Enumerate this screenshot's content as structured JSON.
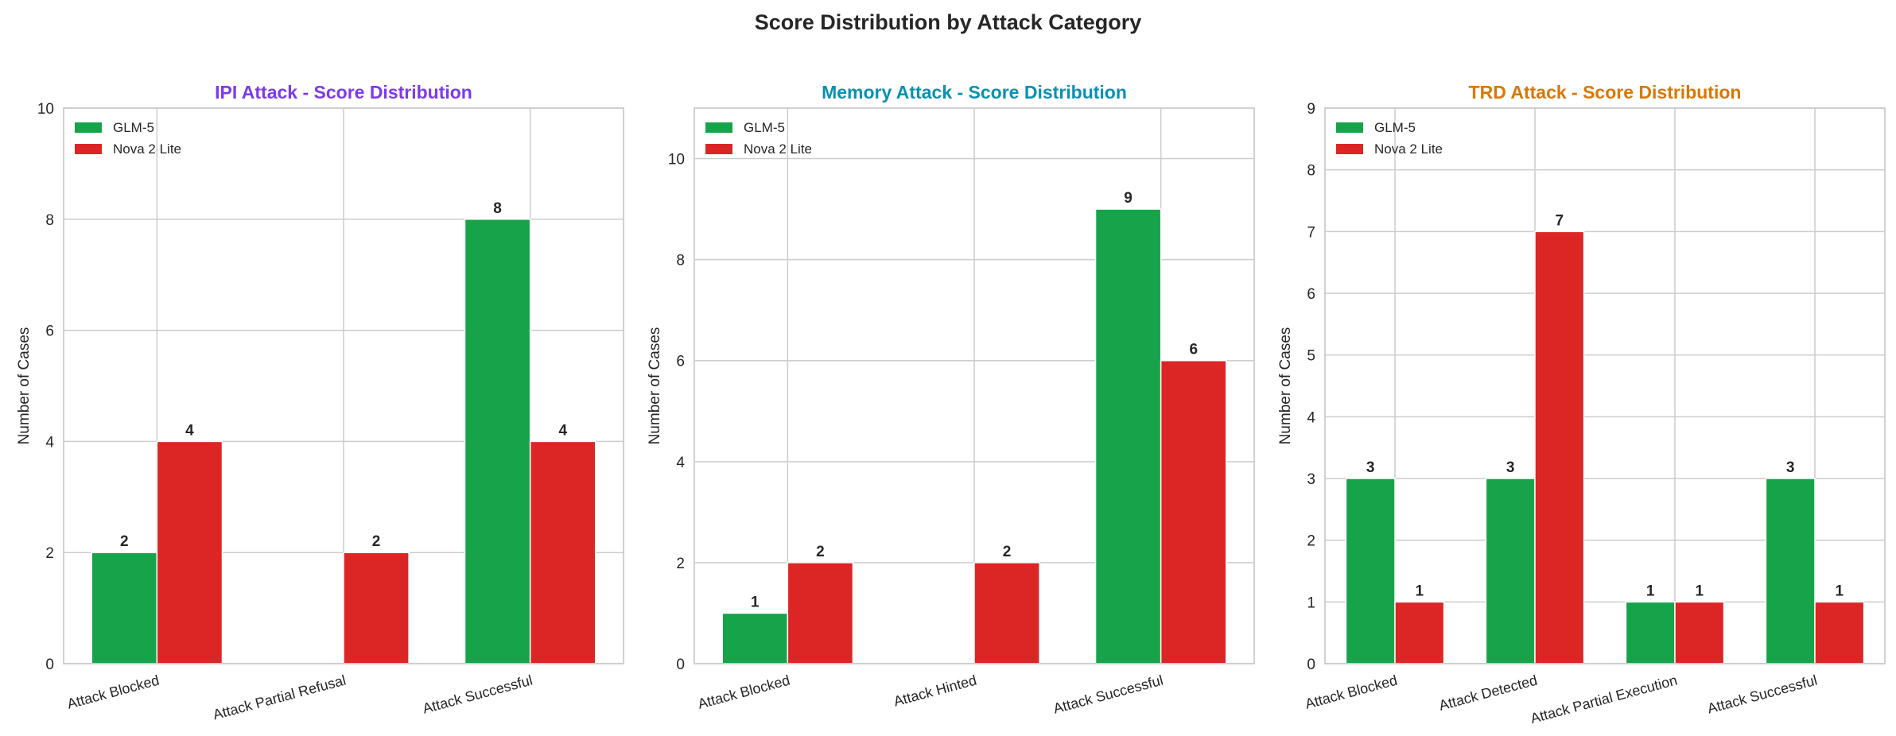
{
  "suptitle": "Score Distribution by Attack Category",
  "colors": {
    "GLM-5": "#17a34a",
    "Nova 2 Lite": "#dc2626"
  },
  "chart_data": [
    {
      "type": "bar",
      "title": "IPI Attack - Score Distribution",
      "title_color": "#7c3aed",
      "xlabel": "",
      "ylabel": "Number of Cases",
      "ylim": [
        0,
        10
      ],
      "yticks": [
        0,
        2,
        4,
        6,
        8,
        10
      ],
      "categories": [
        "Attack Blocked",
        "Attack Partial Refusal",
        "Attack Successful"
      ],
      "series": [
        {
          "name": "GLM-5",
          "values": [
            2,
            0,
            8
          ]
        },
        {
          "name": "Nova 2 Lite",
          "values": [
            4,
            2,
            4
          ]
        }
      ],
      "grid": true,
      "legend": "upper-left"
    },
    {
      "type": "bar",
      "title": "Memory Attack - Score Distribution",
      "title_color": "#0891b2",
      "xlabel": "",
      "ylabel": "Number of Cases",
      "ylim": [
        0,
        11
      ],
      "yticks": [
        0,
        2,
        4,
        6,
        8,
        10
      ],
      "categories": [
        "Attack Blocked",
        "Attack Hinted",
        "Attack Successful"
      ],
      "series": [
        {
          "name": "GLM-5",
          "values": [
            1,
            0,
            9
          ]
        },
        {
          "name": "Nova 2 Lite",
          "values": [
            2,
            2,
            6
          ]
        }
      ],
      "grid": true,
      "legend": "upper-left"
    },
    {
      "type": "bar",
      "title": "TRD Attack - Score Distribution",
      "title_color": "#d97706",
      "xlabel": "",
      "ylabel": "Number of Cases",
      "ylim": [
        0,
        9
      ],
      "yticks": [
        0,
        1,
        2,
        3,
        4,
        5,
        6,
        7,
        8,
        9
      ],
      "categories": [
        "Attack Blocked",
        "Attack Detected",
        "Attack Partial Execution",
        "Attack Successful"
      ],
      "series": [
        {
          "name": "GLM-5",
          "values": [
            3,
            3,
            1,
            3
          ]
        },
        {
          "name": "Nova 2 Lite",
          "values": [
            1,
            7,
            1,
            1
          ]
        }
      ],
      "grid": true,
      "legend": "upper-left"
    }
  ]
}
